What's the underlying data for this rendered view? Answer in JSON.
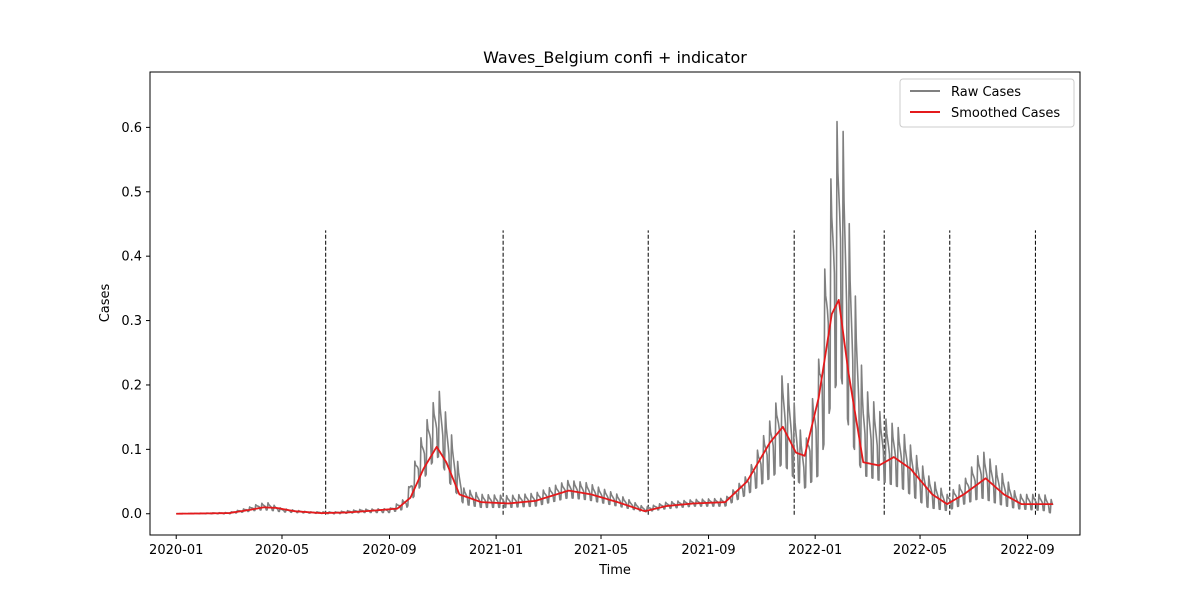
{
  "chart_data": {
    "type": "line",
    "title": "Waves_Belgium confi + indicator",
    "xlabel": "Time",
    "ylabel": "Cases",
    "xlim": [
      "2019-12-02",
      "2022-10-31"
    ],
    "ylim": [
      -0.033,
      0.686
    ],
    "x_ticks": [
      "2020-01",
      "2020-05",
      "2020-09",
      "2021-01",
      "2021-05",
      "2021-09",
      "2022-01",
      "2022-05",
      "2022-09"
    ],
    "y_ticks": [
      0.0,
      0.1,
      0.2,
      0.3,
      0.4,
      0.5,
      0.6
    ],
    "y_tick_labels": [
      "0.0",
      "0.1",
      "0.2",
      "0.3",
      "0.4",
      "0.5",
      "0.6"
    ],
    "grid": false,
    "legend": {
      "position": "top-right",
      "entries": [
        "Raw Cases",
        "Smoothed Cases"
      ]
    },
    "indicator_lines": {
      "style": "dashed",
      "color": "#000000",
      "y_top": 0.44,
      "dates": [
        "2020-06-20",
        "2021-01-09",
        "2021-06-24",
        "2021-12-08",
        "2022-03-21",
        "2022-06-04",
        "2022-09-10"
      ]
    },
    "series": [
      {
        "name": "Raw Cases",
        "color": "#808080",
        "weekly_oscillation": true,
        "envelope": [
          [
            "2020-01-01",
            0.0,
            0.0
          ],
          [
            "2020-03-01",
            0.0,
            0.002
          ],
          [
            "2020-03-20",
            0.003,
            0.008
          ],
          [
            "2020-04-05",
            0.006,
            0.016
          ],
          [
            "2020-04-15",
            0.006,
            0.017
          ],
          [
            "2020-05-01",
            0.003,
            0.008
          ],
          [
            "2020-06-01",
            0.001,
            0.003
          ],
          [
            "2020-07-01",
            0.0,
            0.003
          ],
          [
            "2020-08-01",
            0.002,
            0.007
          ],
          [
            "2020-09-01",
            0.002,
            0.008
          ],
          [
            "2020-09-20",
            0.008,
            0.025
          ],
          [
            "2020-10-05",
            0.04,
            0.11
          ],
          [
            "2020-10-20",
            0.08,
            0.17
          ],
          [
            "2020-10-28",
            0.09,
            0.19
          ],
          [
            "2020-11-08",
            0.05,
            0.14
          ],
          [
            "2020-11-25",
            0.015,
            0.04
          ],
          [
            "2020-12-15",
            0.01,
            0.03
          ],
          [
            "2021-01-15",
            0.01,
            0.028
          ],
          [
            "2021-02-15",
            0.012,
            0.032
          ],
          [
            "2021-03-25",
            0.025,
            0.052
          ],
          [
            "2021-04-15",
            0.022,
            0.048
          ],
          [
            "2021-05-20",
            0.012,
            0.03
          ],
          [
            "2021-06-20",
            0.003,
            0.01
          ],
          [
            "2021-07-15",
            0.008,
            0.018
          ],
          [
            "2021-08-15",
            0.012,
            0.022
          ],
          [
            "2021-09-20",
            0.012,
            0.024
          ],
          [
            "2021-10-15",
            0.03,
            0.06
          ],
          [
            "2021-11-15",
            0.06,
            0.16
          ],
          [
            "2021-11-25",
            0.08,
            0.22
          ],
          [
            "2021-12-05",
            0.06,
            0.19
          ],
          [
            "2021-12-20",
            0.04,
            0.1
          ],
          [
            "2022-01-05",
            0.06,
            0.24
          ],
          [
            "2022-01-20",
            0.18,
            0.54
          ],
          [
            "2022-01-30",
            0.22,
            0.655
          ],
          [
            "2022-02-10",
            0.12,
            0.43
          ],
          [
            "2022-02-25",
            0.06,
            0.2
          ],
          [
            "2022-03-20",
            0.05,
            0.15
          ],
          [
            "2022-04-10",
            0.04,
            0.13
          ],
          [
            "2022-05-10",
            0.01,
            0.06
          ],
          [
            "2022-06-01",
            0.005,
            0.03
          ],
          [
            "2022-06-20",
            0.015,
            0.05
          ],
          [
            "2022-07-10",
            0.025,
            0.1
          ],
          [
            "2022-07-30",
            0.015,
            0.07
          ],
          [
            "2022-08-20",
            0.008,
            0.03
          ],
          [
            "2022-09-20",
            0.005,
            0.03
          ],
          [
            "2022-09-30",
            0.0,
            0.02
          ]
        ]
      },
      {
        "name": "Smoothed Cases",
        "color": "#e41a1c",
        "points": [
          [
            "2020-01-01",
            0.0
          ],
          [
            "2020-03-01",
            0.001
          ],
          [
            "2020-03-25",
            0.006
          ],
          [
            "2020-04-10",
            0.01
          ],
          [
            "2020-04-25",
            0.009
          ],
          [
            "2020-05-15",
            0.004
          ],
          [
            "2020-06-15",
            0.001
          ],
          [
            "2020-07-15",
            0.002
          ],
          [
            "2020-08-15",
            0.005
          ],
          [
            "2020-09-10",
            0.008
          ],
          [
            "2020-09-25",
            0.025
          ],
          [
            "2020-10-10",
            0.07
          ],
          [
            "2020-10-25",
            0.104
          ],
          [
            "2020-11-05",
            0.08
          ],
          [
            "2020-11-20",
            0.03
          ],
          [
            "2020-12-15",
            0.018
          ],
          [
            "2021-01-15",
            0.016
          ],
          [
            "2021-02-15",
            0.02
          ],
          [
            "2021-03-25",
            0.036
          ],
          [
            "2021-04-20",
            0.03
          ],
          [
            "2021-05-20",
            0.018
          ],
          [
            "2021-06-20",
            0.004
          ],
          [
            "2021-07-15",
            0.012
          ],
          [
            "2021-08-15",
            0.016
          ],
          [
            "2021-09-20",
            0.018
          ],
          [
            "2021-10-15",
            0.05
          ],
          [
            "2021-11-10",
            0.11
          ],
          [
            "2021-11-25",
            0.135
          ],
          [
            "2021-12-10",
            0.095
          ],
          [
            "2021-12-20",
            0.09
          ],
          [
            "2022-01-05",
            0.18
          ],
          [
            "2022-01-20",
            0.31
          ],
          [
            "2022-01-28",
            0.332
          ],
          [
            "2022-02-08",
            0.22
          ],
          [
            "2022-02-25",
            0.08
          ],
          [
            "2022-03-15",
            0.075
          ],
          [
            "2022-04-01",
            0.088
          ],
          [
            "2022-04-20",
            0.07
          ],
          [
            "2022-05-15",
            0.03
          ],
          [
            "2022-06-01",
            0.015
          ],
          [
            "2022-06-20",
            0.03
          ],
          [
            "2022-07-15",
            0.055
          ],
          [
            "2022-08-05",
            0.03
          ],
          [
            "2022-08-25",
            0.015
          ],
          [
            "2022-09-30",
            0.015
          ]
        ]
      }
    ]
  }
}
